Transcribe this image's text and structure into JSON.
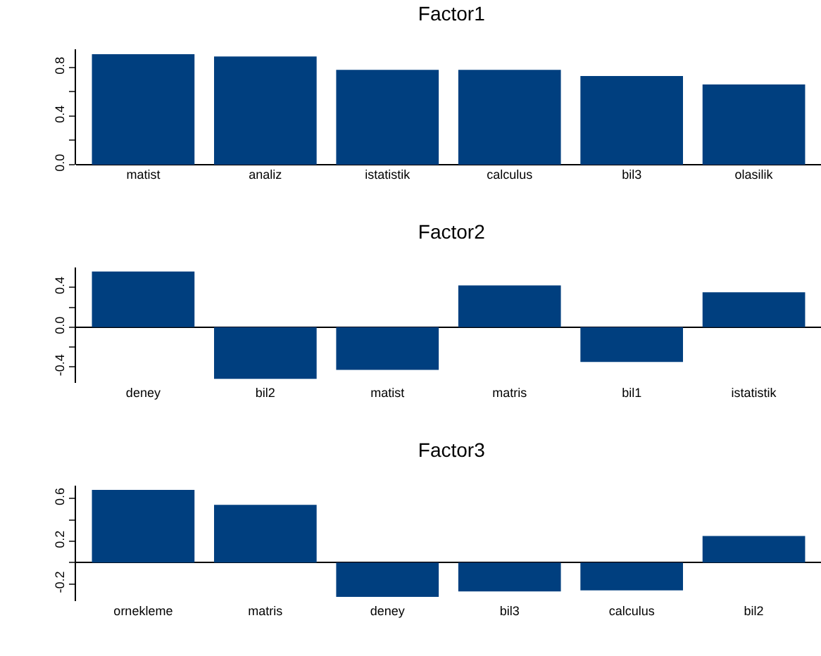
{
  "chart_data": [
    {
      "type": "bar",
      "title": "Factor1",
      "categories": [
        "matist",
        "analiz",
        "istatistik",
        "calculus",
        "bil3",
        "olasilik"
      ],
      "values": [
        0.91,
        0.89,
        0.78,
        0.78,
        0.73,
        0.66
      ],
      "color": "#003f7f",
      "ylim": [
        0,
        0.95
      ],
      "yticks": [
        {
          "value": 0,
          "label": "0.0"
        },
        {
          "value": 0.2,
          "label": null
        },
        0.4,
        {
          "value": 0.6,
          "label": null
        },
        0.8
      ]
    },
    {
      "type": "bar",
      "title": "Factor2",
      "categories": [
        "deney",
        "bil2",
        "matist",
        "matris",
        "bil1",
        "istatistik"
      ],
      "values": [
        0.56,
        -0.52,
        -0.43,
        0.42,
        -0.35,
        0.35
      ],
      "color": "#003f7f",
      "ylim": [
        -0.56,
        0.6
      ],
      "yticks": [
        -0.4,
        {
          "value": -0.2,
          "label": null
        },
        {
          "value": 0,
          "label": "0.0"
        },
        {
          "value": 0.2,
          "label": null
        },
        0.4
      ]
    },
    {
      "type": "bar",
      "title": "Factor3",
      "categories": [
        "ornekleme",
        "matris",
        "deney",
        "bil3",
        "calculus",
        "bil2"
      ],
      "values": [
        0.68,
        0.54,
        -0.32,
        -0.27,
        -0.26,
        0.25
      ],
      "color": "#003f7f",
      "ylim": [
        -0.36,
        0.72
      ],
      "yticks": [
        -0.2,
        {
          "value": 0,
          "label": null
        },
        0.2,
        {
          "value": 0.4,
          "label": null
        },
        0.6
      ]
    }
  ]
}
